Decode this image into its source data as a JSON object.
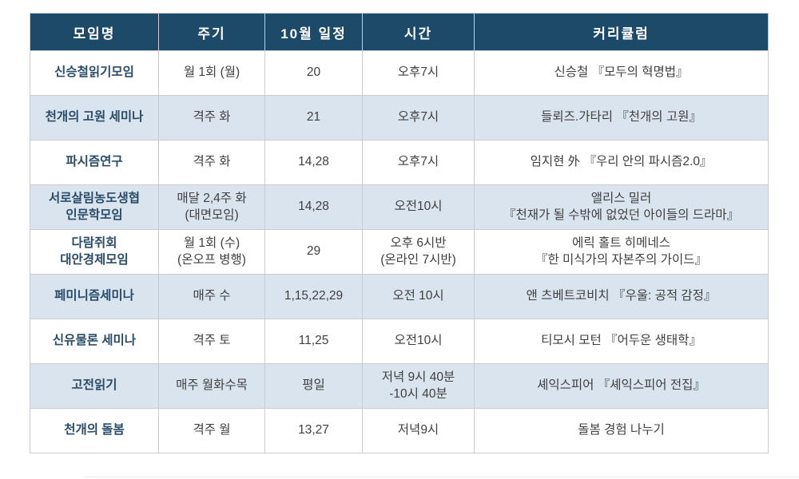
{
  "chart_data": {
    "type": "table",
    "columns": [
      "모임명",
      "주기",
      "10월 일정",
      "시간",
      "커리큘럼"
    ],
    "rows": [
      [
        "신승철읽기모임",
        "월 1회 (월)",
        "20",
        "오후7시",
        "신승철 『모두의 혁명법』"
      ],
      [
        "천개의 고원 세미나",
        "격주 화",
        "21",
        "오후7시",
        "들뢰즈.가타리 『천개의 고원』"
      ],
      [
        "파시즘연구",
        "격주 화",
        "14,28",
        "오후7시",
        "임지현 外 『우리 안의 파시즘2.0』"
      ],
      [
        "서로살림농도생협\n인문학모임",
        "매달 2,4주 화\n(대면모임)",
        "14,28",
        "오전10시",
        "앨리스 밀러\n『천재가 될 수밖에 없었던 아이들의 드라마』"
      ],
      [
        "다람쥐회\n대안경제모임",
        "월 1회 (수)\n(온오프 병행)",
        "29",
        "오후 6시반\n(온라인 7시반)",
        "에릭 홀트 히메네스\n『한 미식가의 자본주의 가이드』"
      ],
      [
        "페미니즘세미나",
        "매주 수",
        "1,15,22,29",
        "오전 10시",
        "앤 츠베트코비치 『우울: 공적 감정』"
      ],
      [
        "신유물론 세미나",
        "격주 토",
        "11,25",
        "오전10시",
        "티모시 모턴 『어두운 생태학』"
      ],
      [
        "고전읽기",
        "매주 월화수목",
        "평일",
        "저녁 9시 40분\n-10시 40분",
        "셰익스피어 『셰익스피어 전집』"
      ],
      [
        "천개의 돌봄",
        "격주 월",
        "13,27",
        "저녁9시",
        "돌봄 경험 나누기"
      ]
    ]
  },
  "colors": {
    "header_bg": "#1E4A69",
    "header_text": "#FFFFFF",
    "stripe_bg": "#D9E4EE",
    "row_bg": "#FFFFFF",
    "name_text": "#2A4C68",
    "body_text": "#404040",
    "cell_border": "#C8CCD0",
    "outer_border": "#A6ABB0"
  }
}
